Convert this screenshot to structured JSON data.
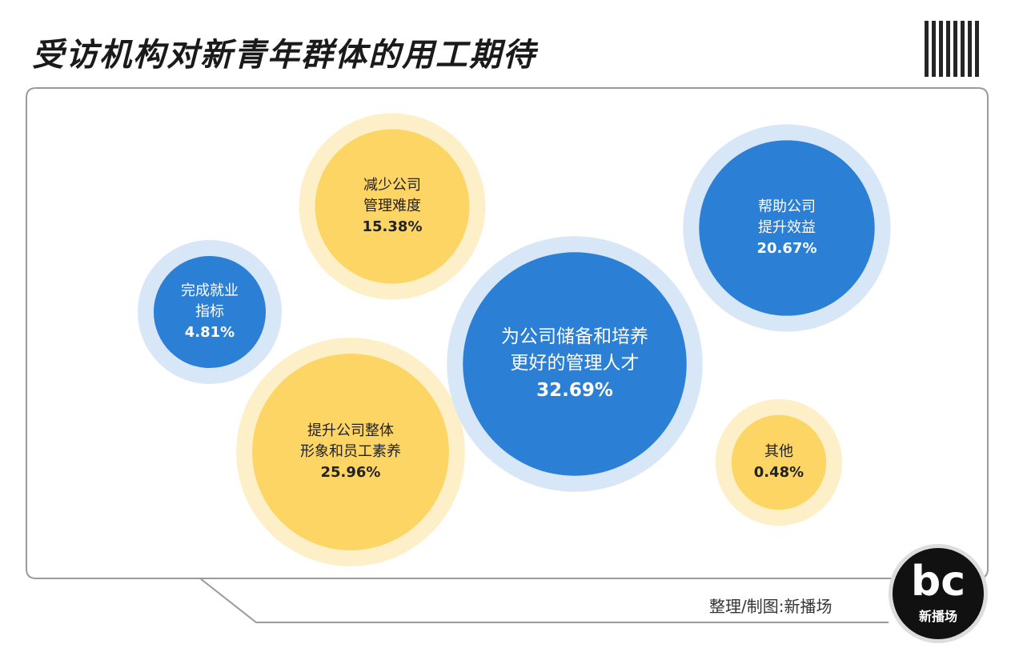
{
  "chart_data": {
    "type": "bubble",
    "title": "受访机构对新青年群体的用工期待",
    "categories": [
      "完成就业\n指标",
      "减少公司\n管理难度",
      "提升公司整体\n形象和员工素养",
      "为公司储备和培养\n更好的管理人才",
      "帮助公司\n提升效益",
      "其他"
    ],
    "values": [
      4.81,
      15.38,
      25.96,
      32.69,
      20.67,
      0.48
    ],
    "value_labels": [
      "4.81%",
      "15.38%",
      "25.96%",
      "32.69%",
      "20.67%",
      "0.48%"
    ],
    "colors": [
      "#2b80d6",
      "#fdd565",
      "#fdd565",
      "#2b80d6",
      "#2b80d6",
      "#fdd565"
    ],
    "source": "整理/制图:新播场",
    "logo": "新播场"
  }
}
